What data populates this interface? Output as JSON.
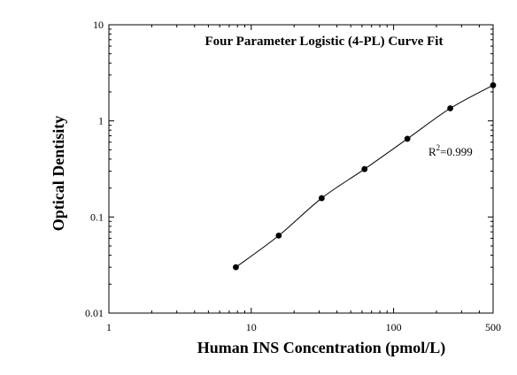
{
  "chart_data": {
    "type": "scatter",
    "title": "Four Parameter Logistic (4-PL) Curve Fit",
    "xlabel": "Human INS Concentration (pmol/L)",
    "ylabel": "Optical Dentisity",
    "x_scale": "log",
    "y_scale": "log",
    "xlim": [
      1,
      500
    ],
    "ylim": [
      0.01,
      10
    ],
    "x_ticks": [
      "1",
      "10",
      "100",
      "500"
    ],
    "y_ticks": [
      "0.01",
      "0.1",
      "1",
      "10"
    ],
    "grid": false,
    "legend": "none",
    "series": [
      {
        "x": [
          7.8,
          15.6,
          31.25,
          62.5,
          125,
          250,
          500
        ],
        "y": [
          0.03,
          0.064,
          0.157,
          0.315,
          0.651,
          1.35,
          2.35
        ]
      }
    ],
    "fit_curve": "4-PL",
    "annotation": {
      "r_label": "R",
      "r_sup": "2",
      "r_value": "=0.999"
    }
  }
}
